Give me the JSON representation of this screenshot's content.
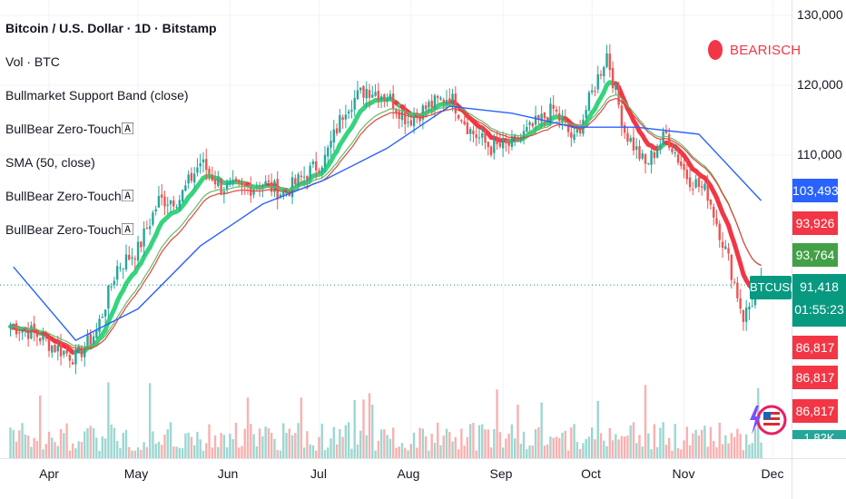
{
  "header": {
    "title": "Bitcoin / U.S. Dollar · 1D · Bitstamp",
    "indicators": [
      "Vol · BTC",
      "Bullmarket Support Band (close)",
      "BullBear Zero-Touch🄰",
      "SMA (50, close)",
      "BullBear Zero-Touch🄰",
      "BullBear Zero-Touch🄰"
    ]
  },
  "signal": {
    "label": "BEARISCH",
    "color": "#f23645"
  },
  "symbol": "BTCUSD",
  "current_price": {
    "value": "91,418",
    "countdown": "01:55:23"
  },
  "price_tags": [
    {
      "value": "103,493",
      "color": "#2962ff"
    },
    {
      "value": "93,926",
      "color": "#f23645"
    },
    {
      "value": "93,764",
      "color": "#43a047"
    },
    {
      "value": "86,817",
      "color": "#f23645"
    },
    {
      "value": "86,817",
      "color": "#f23645"
    },
    {
      "value": "86,817",
      "color": "#f23645"
    }
  ],
  "volume_tag": "1.82K",
  "colors": {
    "up": "#26a69a",
    "down": "#ef5350",
    "sma": "#2962ff",
    "band_green": "#36d47c",
    "band_red": "#f23645",
    "ema_orange": "#ff9800",
    "ema_red": "#e0473f",
    "ema_green": "#66bb6a"
  },
  "chart_data": {
    "type": "candlestick",
    "title": "Bitcoin / U.S. Dollar · 1D · Bitstamp",
    "x_tick_labels": [
      "Apr",
      "May",
      "Jun",
      "Jul",
      "Aug",
      "Sep",
      "Oct",
      "Nov",
      "Dec"
    ],
    "y_tick_labels": [
      "130,000",
      "120,000",
      "110,000"
    ],
    "y_ticks": [
      130000,
      120000,
      110000
    ],
    "ylim": [
      72000,
      131000
    ],
    "grid": true,
    "series": [
      {
        "name": "BTCUSD",
        "x": [
          "2025-03-20",
          "2025-03-27",
          "2025-04-03",
          "2025-04-10",
          "2025-04-17",
          "2025-04-24",
          "2025-05-01",
          "2025-05-08",
          "2025-05-15",
          "2025-05-22",
          "2025-05-29",
          "2025-06-05",
          "2025-06-12",
          "2025-06-19",
          "2025-06-26",
          "2025-07-03",
          "2025-07-10",
          "2025-07-17",
          "2025-07-24",
          "2025-07-31",
          "2025-08-07",
          "2025-08-14",
          "2025-08-21",
          "2025-08-28",
          "2025-09-04",
          "2025-09-11",
          "2025-09-18",
          "2025-09-25",
          "2025-10-02",
          "2025-10-06",
          "2025-10-12",
          "2025-10-19",
          "2025-10-26",
          "2025-11-02",
          "2025-11-09",
          "2025-11-16",
          "2025-11-21",
          "2025-11-27"
        ],
        "close": [
          85500,
          84500,
          82500,
          81000,
          84800,
          94000,
          96500,
          103500,
          103800,
          109000,
          105500,
          105000,
          106000,
          104500,
          107000,
          109500,
          117000,
          119500,
          118500,
          115000,
          117000,
          118500,
          113500,
          111000,
          111500,
          114000,
          116500,
          112000,
          120000,
          124500,
          113500,
          108500,
          113000,
          107000,
          104500,
          95000,
          86817,
          91418
        ]
      },
      {
        "name": "SMA (50, close)",
        "x": [
          "2025-03-20",
          "2025-04-10",
          "2025-05-01",
          "2025-05-22",
          "2025-06-12",
          "2025-07-03",
          "2025-07-24",
          "2025-08-14",
          "2025-09-04",
          "2025-09-25",
          "2025-10-16",
          "2025-11-06",
          "2025-11-27"
        ],
        "values": [
          94000,
          83500,
          88000,
          97000,
          103000,
          106500,
          111000,
          117000,
          116000,
          114000,
          114000,
          113000,
          103493
        ]
      }
    ]
  }
}
